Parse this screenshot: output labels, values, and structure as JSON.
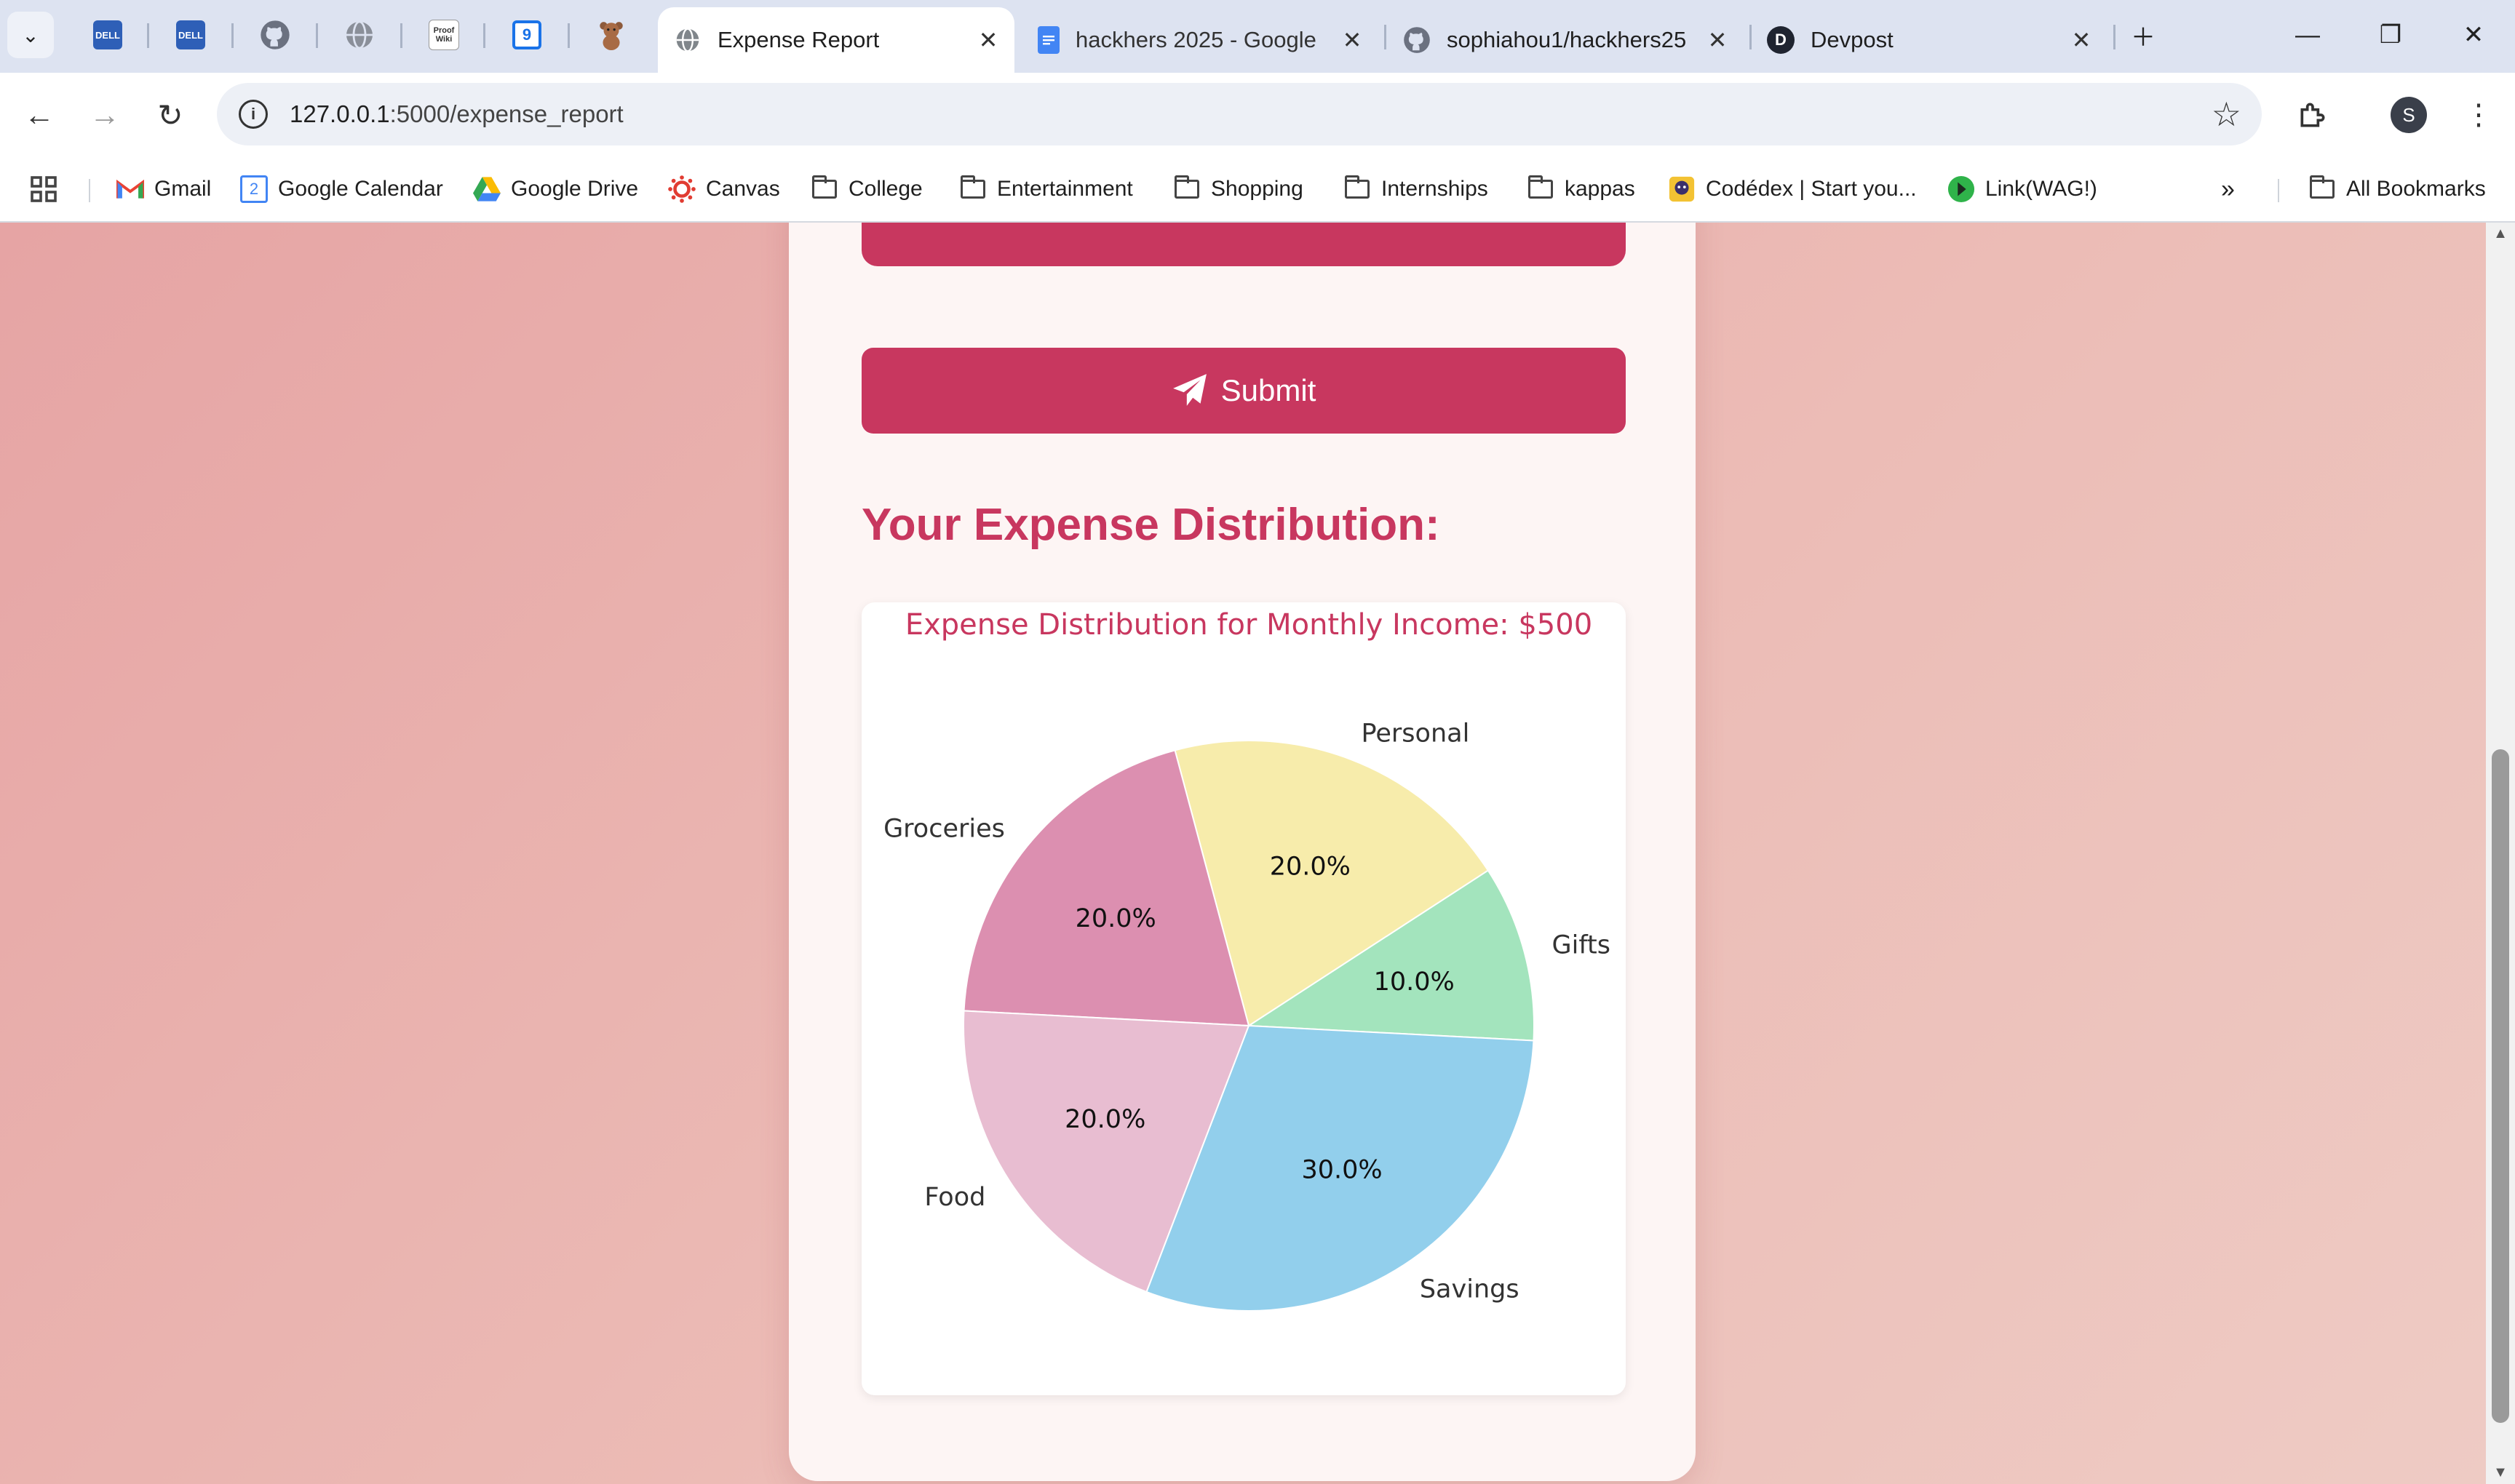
{
  "browser": {
    "tabs": [
      {
        "title": "Expense Report",
        "active": true
      },
      {
        "title": "hackhers 2025 - Google",
        "active": false
      },
      {
        "title": "sophiahou1/hackhers25",
        "active": false
      },
      {
        "title": "Devpost",
        "active": false
      }
    ],
    "pinned_tabs": [
      "dell-icon",
      "dell-icon",
      "github-icon",
      "globe-icon",
      "proofwiki-icon",
      "calendar-icon",
      "teddy-bear-icon"
    ],
    "pinned_text": {
      "dell": "DELL",
      "proofwiki": "Proof Wiki",
      "calendar": "9"
    },
    "url_host": "127.0.0.1",
    "url_path": ":5000/expense_report",
    "avatar_initial": "S",
    "bookmarks": [
      {
        "label": "Gmail",
        "icon": "gmail-icon"
      },
      {
        "label": "Google Calendar",
        "icon": "google-calendar-icon"
      },
      {
        "label": "Google Drive",
        "icon": "google-drive-icon"
      },
      {
        "label": "Canvas",
        "icon": "canvas-icon"
      },
      {
        "label": "College",
        "icon": "folder-icon"
      },
      {
        "label": "Entertainment",
        "icon": "folder-icon"
      },
      {
        "label": "Shopping",
        "icon": "folder-icon"
      },
      {
        "label": "Internships",
        "icon": "folder-icon"
      },
      {
        "label": "kappas",
        "icon": "folder-icon"
      },
      {
        "label": "Codédex | Start you...",
        "icon": "codedex-icon"
      },
      {
        "label": "Link(WAG!)",
        "icon": "link-icon"
      }
    ],
    "all_bookmarks": "All Bookmarks",
    "calendar_badge": "2"
  },
  "page": {
    "submit_label": "Submit",
    "distribution_heading": "Your Expense Distribution:"
  },
  "colors": {
    "accent": "#c8375f",
    "savings": "#92cfec",
    "gifts": "#a3e4bd",
    "personal": "#f7ecab",
    "groceries": "#dc8fb0",
    "food": "#e8bdd1"
  },
  "chart_data": {
    "type": "pie",
    "title": "Expense Distribution for Monthly Income: $500",
    "categories": [
      "Gifts",
      "Personal",
      "Groceries",
      "Food",
      "Savings"
    ],
    "values": [
      10.0,
      20.0,
      20.0,
      20.0,
      30.0
    ],
    "labels": [
      "10.0%",
      "20.0%",
      "20.0%",
      "20.0%",
      "30.0%"
    ],
    "colors": [
      "#a3e4bd",
      "#f7ecab",
      "#dc8fb0",
      "#e8bdd1",
      "#92cfec"
    ],
    "legend": "none"
  }
}
